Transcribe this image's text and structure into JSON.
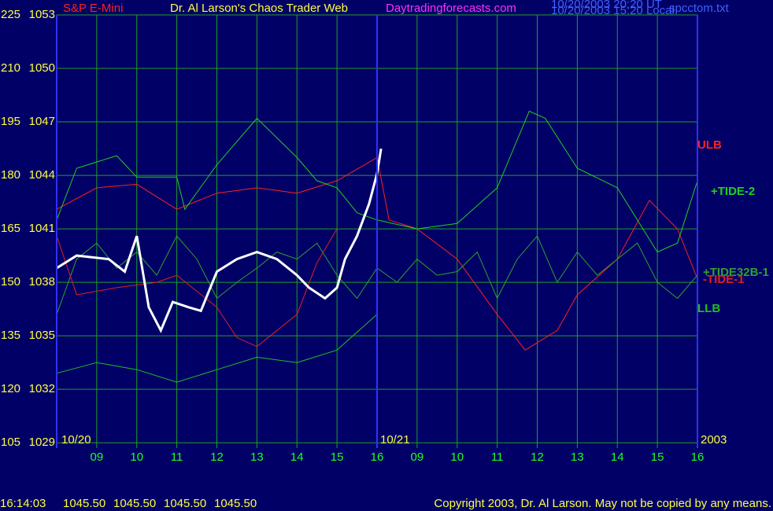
{
  "chart_data": {
    "type": "line",
    "symbol": "S&P E-Mini",
    "title": "Dr. Al Larson's Chaos Trader Web",
    "site": "Daytradingforecasts.com",
    "stamp_ut": "10/20/2003 20:20 UT",
    "stamp_local": "10/20/2003 15:20 Local",
    "file": "spcctom.txt",
    "dates": [
      "10/20",
      "10/21",
      "2003"
    ],
    "xlim": [
      0,
      16
    ],
    "xticks": [
      {
        "value": 1,
        "label": "09"
      },
      {
        "value": 2,
        "label": "10"
      },
      {
        "value": 3,
        "label": "11"
      },
      {
        "value": 4,
        "label": "12"
      },
      {
        "value": 5,
        "label": "13"
      },
      {
        "value": 6,
        "label": "14"
      },
      {
        "value": 7,
        "label": "15"
      },
      {
        "value": 8,
        "label": "16"
      },
      {
        "value": 9,
        "label": "09"
      },
      {
        "value": 10,
        "label": "10"
      },
      {
        "value": 11,
        "label": "11"
      },
      {
        "value": 12,
        "label": "12"
      },
      {
        "value": 13,
        "label": "13"
      },
      {
        "value": 14,
        "label": "14"
      },
      {
        "value": 15,
        "label": "15"
      },
      {
        "value": 16,
        "label": "16"
      }
    ],
    "ylim": [
      1028.7,
      1053
    ],
    "yticks": [
      1053,
      1050,
      1047,
      1044,
      1041,
      1038,
      1035,
      1032,
      1029
    ],
    "y2lim": [
      103.5,
      225
    ],
    "y2ticks": [
      225,
      210,
      195,
      180,
      165,
      150,
      135,
      120,
      105
    ],
    "grid": true,
    "price": {
      "color": "#ffffff",
      "x": [
        0,
        0.5,
        1.3,
        1.7,
        2,
        2.3,
        2.6,
        2.9,
        3.3,
        3.6,
        4,
        4.5,
        5,
        5.5,
        6,
        6.3,
        6.7,
        7,
        7.2,
        7.5,
        7.8,
        8,
        8.1
      ],
      "values": [
        1038.8,
        1039.5,
        1039.3,
        1038.6,
        1040.6,
        1036.6,
        1035.3,
        1036.9,
        1036.6,
        1036.4,
        1038.6,
        1039.3,
        1039.7,
        1039.3,
        1038.4,
        1037.7,
        1037.1,
        1037.7,
        1039.3,
        1040.6,
        1042.4,
        1044.1,
        1045.5
      ]
    },
    "series": [
      {
        "name": "ULB",
        "color": "#ff2020",
        "x": [
          0,
          1,
          2,
          3,
          4,
          5,
          6,
          7,
          8,
          8.3,
          9,
          10,
          11,
          11.7,
          12.5,
          13,
          14,
          14.8,
          15.5,
          16
        ],
        "values": [
          1042.1,
          1043.3,
          1043.5,
          1042.1,
          1043.0,
          1043.3,
          1043.0,
          1043.7,
          1045.0,
          1041.5,
          1041.0,
          1039.3,
          1036.2,
          1034.2,
          1035.3,
          1037.3,
          1039.3,
          1042.6,
          1041.0,
          1038.2
        ]
      },
      {
        "name": "+TIDE-2",
        "color": "#20d020",
        "x": [
          0,
          0.5,
          1.5,
          2,
          3,
          3.2,
          4,
          5,
          6,
          6.5,
          7,
          7.5,
          8,
          9,
          10,
          11,
          11.8,
          12.2,
          13,
          14,
          15,
          15.5,
          16
        ],
        "values": [
          1041.5,
          1044.4,
          1045.1,
          1043.9,
          1043.9,
          1042.1,
          1044.6,
          1047.2,
          1045.0,
          1043.7,
          1043.3,
          1041.9,
          1041.5,
          1041.0,
          1041.3,
          1043.3,
          1047.6,
          1047.2,
          1044.4,
          1043.3,
          1039.7,
          1040.2,
          1043.7
        ]
      },
      {
        "name": "+TIDE32B-1",
        "color": "#30a030",
        "x": [
          0,
          0.5,
          1,
          1.5,
          2,
          2.5,
          3,
          3.5,
          4,
          4.5,
          5,
          5.5,
          6,
          6.5,
          7,
          7.5,
          8,
          8.5,
          9,
          9.5,
          10,
          10.5,
          11,
          11.5,
          12,
          12.5,
          13,
          13.5,
          14,
          14.5,
          15,
          15.5,
          16
        ],
        "values": [
          1036.2,
          1039.3,
          1040.2,
          1038.8,
          1039.7,
          1038.4,
          1040.6,
          1039.3,
          1037.1,
          1038.0,
          1038.8,
          1039.7,
          1039.3,
          1040.2,
          1038.4,
          1037.1,
          1038.8,
          1038.0,
          1039.3,
          1038.4,
          1038.6,
          1039.7,
          1037.1,
          1039.3,
          1040.6,
          1038.0,
          1039.7,
          1038.4,
          1039.3,
          1040.2,
          1038.0,
          1037.1,
          1038.4
        ]
      },
      {
        "name": "-TIDE-1",
        "color": "#e02020",
        "x": [
          0,
          0.5,
          1.5,
          2.5,
          3,
          4,
          4.5,
          5,
          6,
          6.5,
          7
        ],
        "values": [
          1040.6,
          1037.3,
          1037.7,
          1038.0,
          1038.4,
          1036.6,
          1034.9,
          1034.4,
          1036.2,
          1039.1,
          1041.0
        ]
      },
      {
        "name": "LLB",
        "color": "#20c020",
        "x": [
          0,
          1,
          2,
          3,
          4,
          5,
          6,
          7,
          8
        ],
        "values": [
          1032.9,
          1033.5,
          1033.1,
          1032.4,
          1033.1,
          1033.8,
          1033.5,
          1034.2,
          1036.2
        ]
      }
    ],
    "footer": {
      "time": "16:14:03",
      "quotes": [
        "1045.50",
        "1045.50",
        "1045.50",
        "1045.50"
      ],
      "copyright": "Copyright 2003, Dr. Al Larson. May not be copied by any means."
    }
  }
}
